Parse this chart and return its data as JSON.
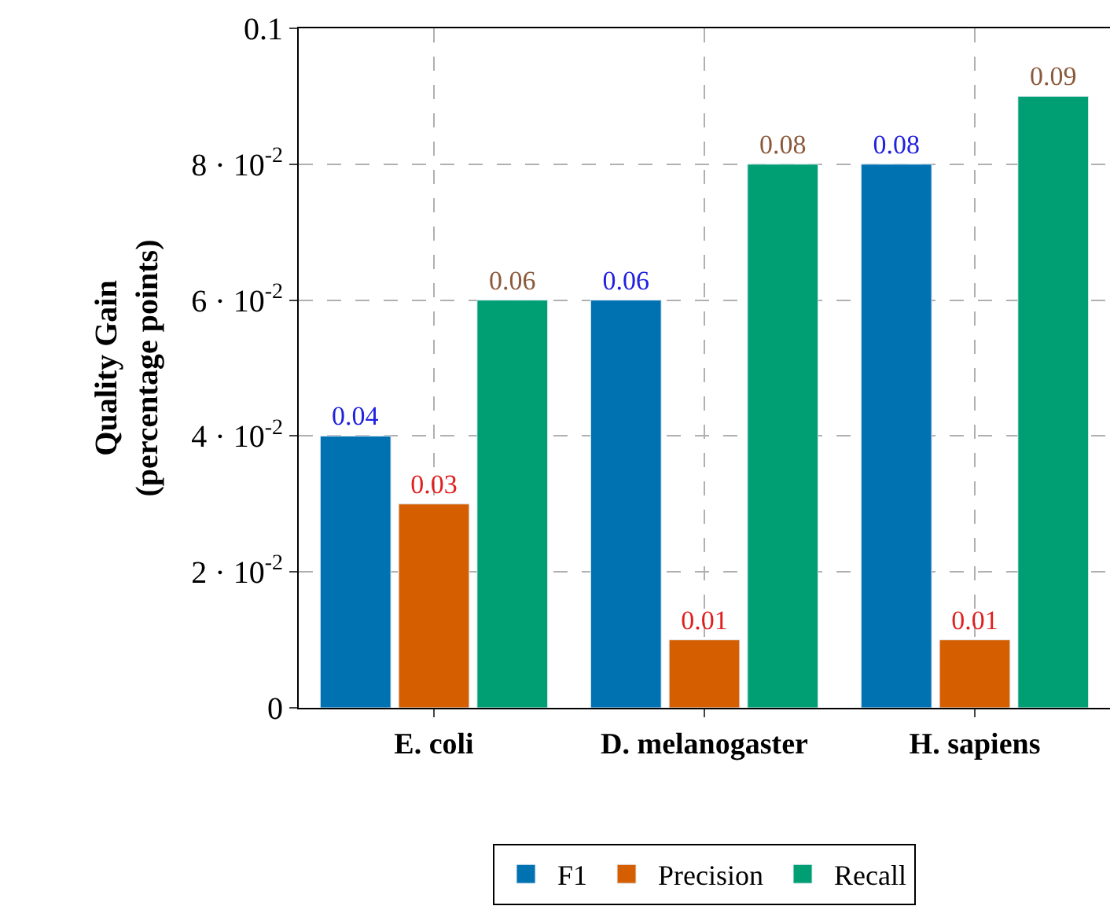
{
  "chart_data": {
    "type": "bar",
    "ylabel": "Quality Gain\n(percentage points)",
    "categories": [
      "E. coli",
      "D. melanogaster",
      "H. sapiens"
    ],
    "series": [
      {
        "name": "F1",
        "color": "#0072b2",
        "values": [
          0.04,
          0.06,
          0.08
        ]
      },
      {
        "name": "Precision",
        "color": "#d55e00",
        "values": [
          0.03,
          0.01,
          0.01
        ]
      },
      {
        "name": "Recall",
        "color": "#009e73",
        "values": [
          0.06,
          0.08,
          0.09
        ]
      }
    ],
    "ylim": [
      0,
      0.1
    ],
    "yticks": [
      0,
      {
        "value": 0.02,
        "label": "2 · 10$^{-2}$"
      },
      {
        "value": 0.04,
        "label": "4 · 10$^{-2}$"
      },
      {
        "value": 0.06,
        "label": "6 · 10$^{-2}$"
      },
      {
        "value": 0.08,
        "label": "8 · 10$^{-2}$"
      },
      0.1
    ],
    "data_labels": true,
    "grid": true,
    "legend": "bottom"
  }
}
